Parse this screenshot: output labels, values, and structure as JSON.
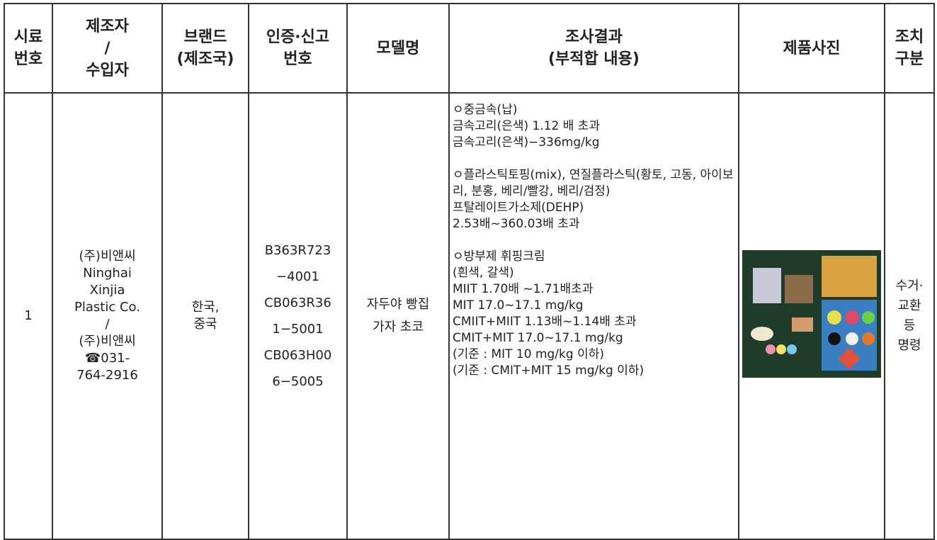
{
  "table": {
    "headers": [
      [
        "시료",
        "번호"
      ],
      [
        "제조자",
        "/",
        "수입자"
      ],
      [
        "브랜드",
        "(제조국)"
      ],
      [
        "인증·신고",
        "번호"
      ],
      [
        "모델명"
      ],
      [
        "조사결과",
        "(부적합 내용)"
      ],
      [
        "제품사진"
      ],
      [
        "조치",
        "구분"
      ]
    ],
    "row": {
      "sample_no": "1",
      "manufacturer": [
        "(주)비앤씨",
        "Ninghai",
        "Xinjia",
        "Plastic Co.",
        "/",
        "(주)비앤씨",
        "☎031-",
        "764-2916"
      ],
      "brand": [
        "한국,",
        "중국"
      ],
      "cert_no": [
        "B363R723",
        "−4001",
        "CB063R36",
        "1−5001",
        "CB063H00",
        "6−5005"
      ],
      "model": [
        "자두야 빵집",
        "가자 초코"
      ],
      "results": [
        [
          "ㅇ중금속(납)",
          "금속고리(은색) 1.12 배 초과",
          "금속고리(은색)−336mg/kg"
        ],
        [
          "ㅇ플라스틱토핑(mix), 연질플라스틱(황토, 고동, 아이보리, 분홍, 베리/빨강, 베리/검정)",
          "프탈레이트가소제(DEHP)",
          "2.53배~360.03배 초과"
        ],
        [
          "ㅇ방부제 휘핑크림",
          "(흰색, 갈색)",
          "MIIT 1.70배 ~1.71배초과",
          "MIT 17.0~17.1 mg/kg",
          "CMIIT+MIIT 1.13배~1.14배 초과",
          "CMIT+MIT 17.0~17.1 mg/kg",
          "(기준 : MIT 10 mg/kg 이하)",
          "(기준 : CMIT+MIT 15 mg/kg 이하)"
        ]
      ],
      "action": [
        "수거·",
        "교환",
        "등",
        "명령"
      ]
    }
  }
}
